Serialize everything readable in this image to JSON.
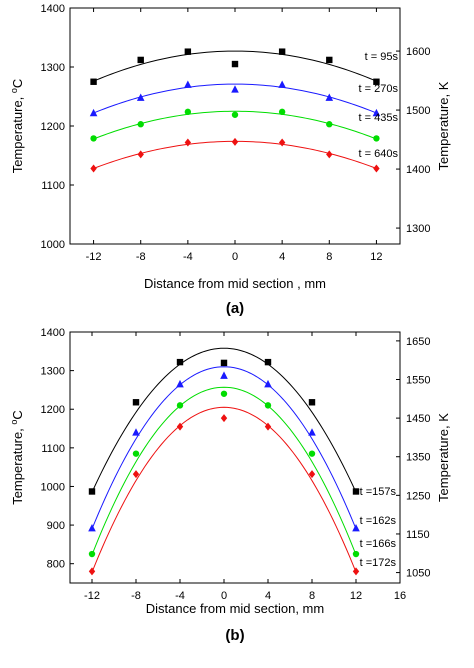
{
  "chart_data": [
    {
      "type": "scatter",
      "panel_label": "(a)",
      "xlabel": "Distance from mid section , mm",
      "ylabel": "Temperature, ",
      "ylabel_sup": "o",
      "ylabel_unit": "C",
      "y2label": "Temperature, K",
      "xlim": [
        -14,
        14
      ],
      "ylim": [
        1000,
        1400
      ],
      "y2lim": [
        1273,
        1673
      ],
      "xticks": [
        -12,
        -8,
        -4,
        0,
        4,
        8,
        12
      ],
      "yticks": [
        1000,
        1100,
        1200,
        1300,
        1400
      ],
      "y2ticks": [
        1300,
        1400,
        1500,
        1600
      ],
      "x": [
        -12,
        -8,
        -4,
        0,
        4,
        8,
        12
      ],
      "series": [
        {
          "name": "t = 95s",
          "marker": "square",
          "color": "#000000",
          "values": [
            1275,
            1312,
            1326,
            1305,
            1326,
            1312,
            1275
          ],
          "fit": [
            1276,
            1327
          ]
        },
        {
          "name": "t = 270s",
          "marker": "triangle",
          "color": "#1a1aff",
          "values": [
            1222,
            1248,
            1270,
            1262,
            1270,
            1248,
            1222
          ],
          "fit": [
            1222,
            1271
          ]
        },
        {
          "name": "t = 435s",
          "marker": "circle",
          "color": "#00dd00",
          "values": [
            1179,
            1203,
            1224,
            1219,
            1224,
            1203,
            1179
          ],
          "fit": [
            1178,
            1225
          ]
        },
        {
          "name": "t = 640s",
          "marker": "diamond",
          "color": "#ee1111",
          "values": [
            1128,
            1152,
            1172,
            1173,
            1172,
            1152,
            1128
          ],
          "fit": [
            1128,
            1174
          ]
        }
      ]
    },
    {
      "type": "scatter",
      "panel_label": "(b)",
      "xlabel": "Distance from mid section, mm",
      "ylabel": "Temperature, ",
      "ylabel_sup": "o",
      "ylabel_unit": "C",
      "y2label": "Temperature, K",
      "xlim": [
        -14,
        16
      ],
      "ylim": [
        750,
        1400
      ],
      "y2lim": [
        1023,
        1673
      ],
      "xticks": [
        -12,
        -8,
        -4,
        0,
        4,
        8,
        12,
        16
      ],
      "yticks": [
        800,
        900,
        1000,
        1100,
        1200,
        1300,
        1400
      ],
      "y2ticks": [
        1050,
        1150,
        1250,
        1350,
        1450,
        1550,
        1650
      ],
      "x": [
        -12,
        -8,
        -4,
        0,
        4,
        8,
        12
      ],
      "series": [
        {
          "name": "t =157s",
          "marker": "square",
          "color": "#000000",
          "values": [
            987,
            1218,
            1322,
            1320,
            1322,
            1218,
            987
          ],
          "fit": [
            985,
            1358
          ]
        },
        {
          "name": "t =162s",
          "marker": "triangle",
          "color": "#1a1aff",
          "values": [
            892,
            1140,
            1265,
            1287,
            1265,
            1140,
            892
          ],
          "fit": [
            890,
            1310
          ]
        },
        {
          "name": "t =166s",
          "marker": "circle",
          "color": "#00dd00",
          "values": [
            825,
            1085,
            1210,
            1240,
            1210,
            1085,
            825
          ],
          "fit": [
            823,
            1257
          ]
        },
        {
          "name": "t =172s",
          "marker": "diamond",
          "color": "#ee1111",
          "values": [
            780,
            1032,
            1155,
            1177,
            1155,
            1032,
            780
          ],
          "fit": [
            778,
            1205
          ]
        }
      ]
    }
  ]
}
